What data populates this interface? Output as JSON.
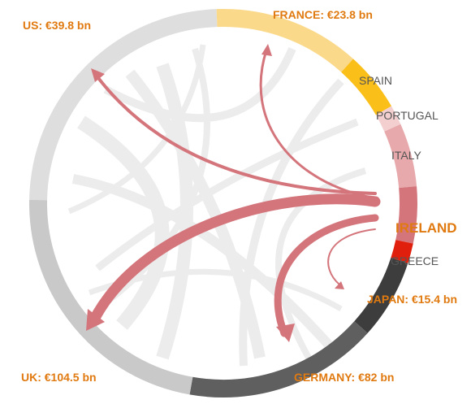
{
  "chart_data": {
    "type": "chord",
    "focus": "ireland",
    "labels": {
      "us": "US: €39.8 bn",
      "france": "FRANCE: €23.8 bn",
      "spain": "SPAIN",
      "portugal": "PORTUGAL",
      "italy": "ITALY",
      "ireland": "IRELAND",
      "greece": "GREECE",
      "japan": "JAPAN: €15.4 bn",
      "germany": "GERMANY: €82 bn",
      "uk": "UK: €104.5 bn"
    },
    "flows_from_ireland": [
      {
        "to": "uk",
        "value": 104.5
      },
      {
        "to": "germany",
        "value": 82
      },
      {
        "to": "us",
        "value": 39.8
      },
      {
        "to": "france",
        "value": 23.8
      },
      {
        "to": "japan",
        "value": 15.4
      }
    ],
    "colors": {
      "us": "#dedede",
      "france": "#fbd98a",
      "spain": "#fbbf1a",
      "portugal": "#f3cfcf",
      "italy": "#e7a9ab",
      "ireland": "#d4757c",
      "greece": "#e0200c",
      "japan": "#3d3d3d",
      "germany": "#5f5f5f",
      "uk": "#c9c9c9",
      "flow": "#d4757c",
      "label_highlight": "#e07a10",
      "label_plain": "#555555"
    }
  }
}
